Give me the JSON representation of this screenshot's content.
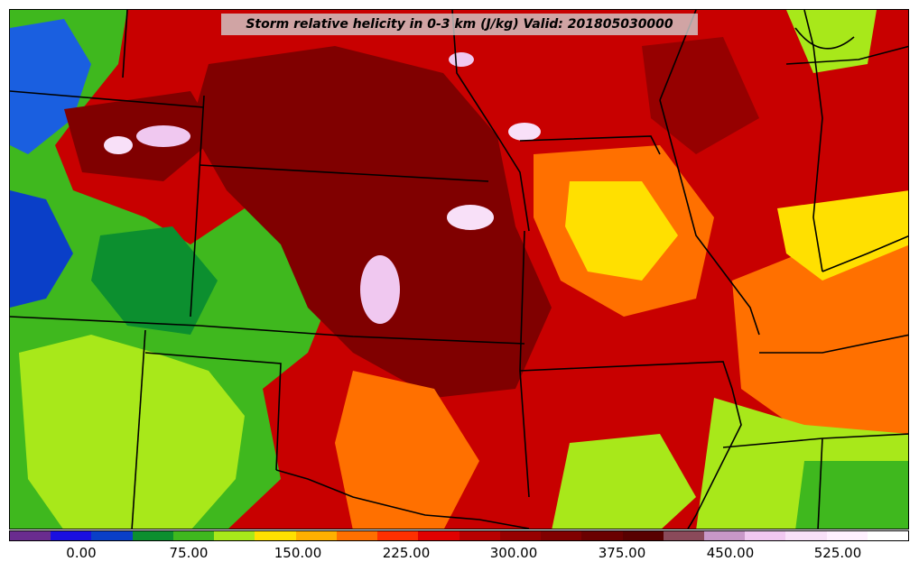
{
  "title": "Storm relative helicity in 0-3 km (J/kg) Valid: 201805030000",
  "colorbar": {
    "colors": [
      "#6a2c8f",
      "#1a0fe0",
      "#0a3fc8",
      "#0c8f2f",
      "#3fb81e",
      "#a8e81a",
      "#ffe000",
      "#ffb000",
      "#ff7000",
      "#ff3000",
      "#e00000",
      "#b80000",
      "#960000",
      "#800000",
      "#6a0000",
      "#580000",
      "#8a4a5a",
      "#c898c8",
      "#f0c8f0",
      "#f8e0f8",
      "#fff0ff",
      "#ffffff"
    ],
    "ticks": [
      "0.00",
      "75.00",
      "150.00",
      "225.00",
      "300.00",
      "375.00",
      "450.00",
      "525.00"
    ]
  },
  "map_colors": {
    "background": "#c80000",
    "border": "#000000"
  }
}
